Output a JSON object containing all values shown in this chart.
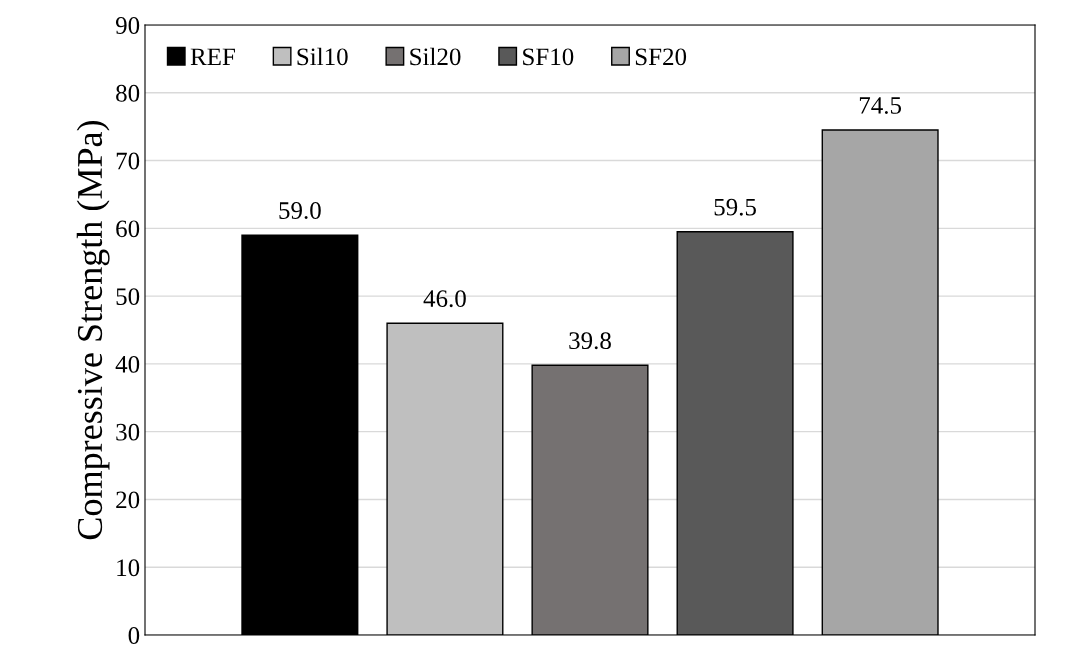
{
  "chart_data": {
    "type": "bar",
    "ylabel": "Compressive Strength (MPa)",
    "categories": [
      null
    ],
    "series": [
      {
        "name": "REF",
        "color": "#000000",
        "values": [
          59.0
        ],
        "value_labels": [
          "59.0"
        ]
      },
      {
        "name": "Sil10",
        "color": "#bfbfbf",
        "values": [
          46.0
        ],
        "value_labels": [
          "46.0"
        ]
      },
      {
        "name": "Sil20",
        "color": "#757171",
        "values": [
          39.8
        ],
        "value_labels": [
          "39.8"
        ]
      },
      {
        "name": "SF10",
        "color": "#595959",
        "values": [
          59.5
        ],
        "value_labels": [
          "59.5"
        ]
      },
      {
        "name": "SF20",
        "color": "#a6a6a6",
        "values": [
          74.5
        ],
        "value_labels": [
          "74.5"
        ]
      }
    ],
    "ylim": [
      0,
      90
    ],
    "yticks": [
      0,
      10,
      20,
      30,
      40,
      50,
      60,
      70,
      80,
      90
    ],
    "grid": "y",
    "legend": "top left"
  }
}
